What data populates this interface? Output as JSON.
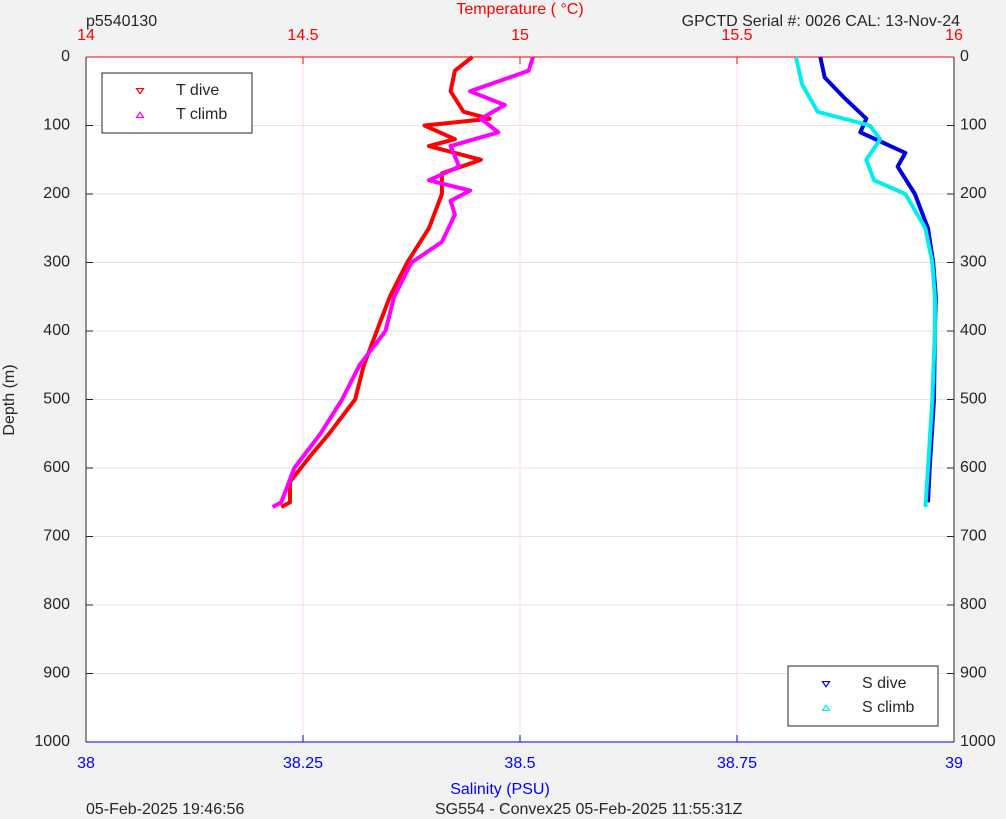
{
  "chart_data": {
    "type": "line",
    "title_left": "p5540130",
    "title_right": "GPCTD Serial #: 0026 CAL: 13-Nov-24",
    "x2label": "Temperature (    °C)",
    "xlabel": "Salinity (PSU)",
    "ylabel": "Depth (m)",
    "footer_left": "05-Feb-2025 19:46:56",
    "footer_right": "SG554 - Convex25 05-Feb-2025 11:55:31Z",
    "ylim": [
      0,
      1000
    ],
    "y_reversed": true,
    "yticks": [
      0,
      100,
      200,
      300,
      400,
      500,
      600,
      700,
      800,
      900,
      1000
    ],
    "xlim": [
      38,
      39
    ],
    "xticks": [
      38,
      38.25,
      38.5,
      38.75,
      39
    ],
    "x_color": "#0000ff",
    "x2lim": [
      14,
      16
    ],
    "x2ticks": [
      14,
      14.5,
      15,
      15.5,
      16
    ],
    "x2_color": "#ff0000",
    "grid": true,
    "series": [
      {
        "name": "T dive",
        "color": "#ff0000",
        "axis": "x2",
        "marker": "down",
        "legend": "upper left",
        "x": [
          14.89,
          14.85,
          14.84,
          14.87,
          14.93,
          14.78,
          14.85,
          14.79,
          14.91,
          14.82,
          14.82,
          14.79,
          14.74,
          14.7,
          14.67,
          14.64,
          14.62,
          14.56,
          14.52,
          14.47,
          14.47,
          14.45
        ],
        "values": [
          0,
          20,
          50,
          80,
          90,
          100,
          120,
          130,
          150,
          170,
          200,
          250,
          300,
          350,
          400,
          450,
          500,
          550,
          580,
          620,
          650,
          657
        ]
      },
      {
        "name": "T climb",
        "color": "#ff00ff",
        "axis": "x2",
        "marker": "up",
        "legend": "upper left",
        "x": [
          15.03,
          15.02,
          14.885,
          14.965,
          14.91,
          14.95,
          14.84,
          14.86,
          14.79,
          14.885,
          14.84,
          14.85,
          14.82,
          14.75,
          14.71,
          14.69,
          14.63,
          14.59,
          14.54,
          14.48,
          14.45,
          14.43
        ],
        "values": [
          0,
          20,
          50,
          70,
          90,
          110,
          130,
          160,
          180,
          195,
          210,
          230,
          270,
          300,
          350,
          400,
          450,
          500,
          550,
          600,
          650,
          657
        ]
      },
      {
        "name": "S dive",
        "color": "#0000dd",
        "axis": "x",
        "marker": "down",
        "legend": "lower right",
        "x": [
          38.846,
          38.851,
          38.874,
          38.899,
          38.892,
          38.944,
          38.935,
          38.955,
          38.97,
          38.976,
          38.979,
          38.978,
          38.977,
          38.972,
          38.97
        ],
        "values": [
          0,
          30,
          60,
          90,
          110,
          140,
          160,
          200,
          250,
          300,
          350,
          400,
          500,
          600,
          650
        ]
      },
      {
        "name": "S climb",
        "color": "#00eeee",
        "axis": "x",
        "marker": "up",
        "legend": "lower right",
        "x": [
          38.818,
          38.825,
          38.843,
          38.903,
          38.915,
          38.899,
          38.908,
          38.944,
          38.967,
          38.975,
          38.978,
          38.978,
          38.975,
          38.97,
          38.967
        ],
        "values": [
          0,
          40,
          80,
          100,
          120,
          150,
          180,
          200,
          250,
          300,
          350,
          400,
          500,
          600,
          657
        ]
      }
    ]
  }
}
